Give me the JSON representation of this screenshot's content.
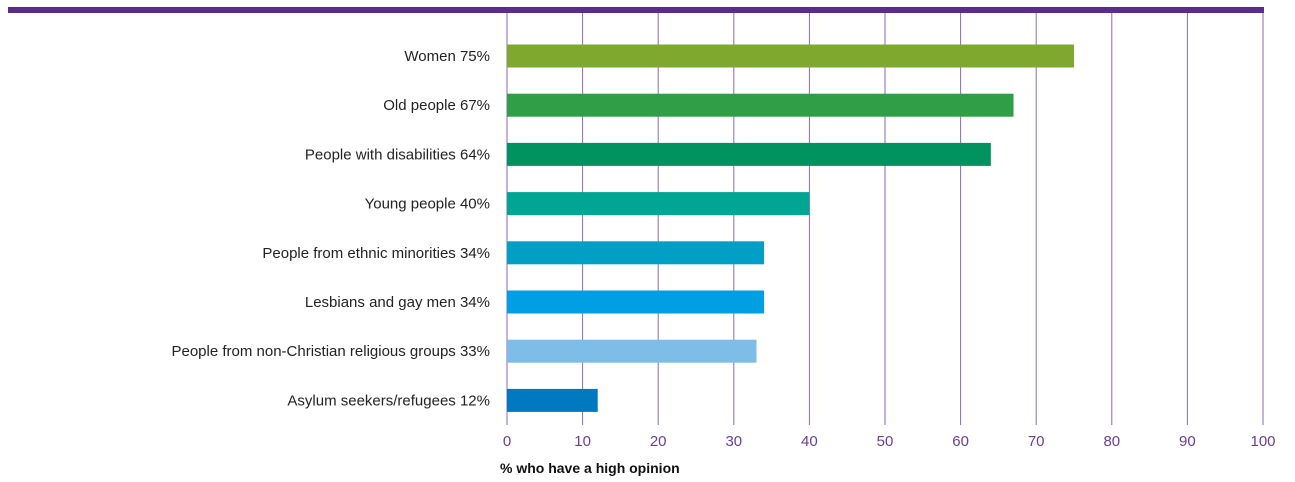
{
  "chart_data": {
    "type": "bar",
    "orientation": "horizontal",
    "categories": [
      "Women 75%",
      "Old people 67%",
      "People with disabilities 64%",
      "Young people 40%",
      "People from ethnic minorities 34%",
      "Lesbians and gay men 34%",
      "People from non-Christian religious groups 33%",
      "Asylum seekers/refugees 12%"
    ],
    "values": [
      75,
      67,
      64,
      40,
      34,
      34,
      33,
      12
    ],
    "bar_colors": [
      "#7fa82f",
      "#2f9e44",
      "#00935f",
      "#00a693",
      "#00a0c6",
      "#009fe3",
      "#7dbde8",
      "#0079c1"
    ],
    "xlabel": "% who have a high opinion",
    "xlim": [
      0,
      100
    ],
    "xticks": [
      "0",
      "10",
      "20",
      "30",
      "40",
      "50",
      "60",
      "70",
      "80",
      "90",
      "100"
    ],
    "grid": "vertical",
    "top_rule_color": "#5b2d86",
    "gridline_color": "#8f67b6",
    "tick_label_color": "#6a3d9a"
  }
}
